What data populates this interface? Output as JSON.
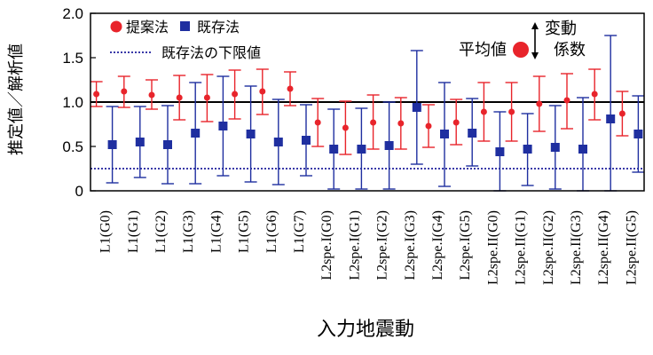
{
  "chart_data": {
    "type": "scatter",
    "xlabel": "入力地震動",
    "ylabel": "推定値／解析値",
    "ylim": [
      0,
      2.0
    ],
    "yticks": [
      "0",
      "0.5",
      "1.0",
      "1.5",
      "2.0"
    ],
    "reference_line": 1.0,
    "categories": [
      "L1(G0)",
      "L1(G1)",
      "L1(G2)",
      "L1(G3)",
      "L1(G4)",
      "L1(G5)",
      "L1(G6)",
      "L1(G7)",
      "L2spe.I(G0)",
      "L2spe.I(G1)",
      "L2spe.I(G2)",
      "L2spe.I(G3)",
      "L2spe.I(G4)",
      "L2spe.I(G5)",
      "L2spe.II(G0)",
      "L2spe.II(G1)",
      "L2spe.II(G2)",
      "L2spe.II(G3)",
      "L2spe.II(G4)",
      "L2spe.II(G5)"
    ],
    "series": [
      {
        "name": "提案法",
        "color": "#e8242b",
        "marker": "circle",
        "mean": [
          1.09,
          1.12,
          1.08,
          1.05,
          1.05,
          1.09,
          1.12,
          1.15,
          0.77,
          0.71,
          0.77,
          0.76,
          0.73,
          0.77,
          0.89,
          0.89,
          0.98,
          1.02,
          1.09,
          0.87
        ],
        "upper": [
          1.23,
          1.29,
          1.25,
          1.3,
          1.31,
          1.36,
          1.37,
          1.34,
          1.04,
          1.01,
          1.08,
          1.05,
          0.97,
          1.03,
          1.22,
          1.22,
          1.29,
          1.32,
          1.37,
          1.12
        ],
        "lower": [
          0.95,
          0.94,
          0.92,
          0.8,
          0.78,
          0.81,
          0.86,
          0.96,
          0.5,
          0.41,
          0.47,
          0.47,
          0.49,
          0.52,
          0.56,
          0.56,
          0.67,
          0.7,
          0.8,
          0.62
        ]
      },
      {
        "name": "既存法",
        "color": "#1f2fa0",
        "marker": "square",
        "mean": [
          0.52,
          0.55,
          0.52,
          0.65,
          0.73,
          0.64,
          0.55,
          0.57,
          0.47,
          0.47,
          0.51,
          0.94,
          0.64,
          0.65,
          0.44,
          0.47,
          0.49,
          0.47,
          0.81,
          0.64
        ],
        "upper": [
          0.95,
          0.95,
          0.96,
          1.22,
          1.29,
          1.18,
          1.03,
          0.97,
          0.92,
          0.93,
          1.0,
          1.58,
          1.22,
          1.04,
          0.89,
          0.87,
          0.96,
          1.05,
          1.75,
          1.07
        ],
        "lower": [
          0.09,
          0.15,
          0.08,
          0.08,
          0.17,
          0.1,
          0.07,
          0.17,
          0.02,
          0.02,
          0.02,
          0.3,
          0.05,
          0.28,
          0.0,
          0.06,
          0.02,
          0.0,
          0.0,
          0.21
        ]
      }
    ],
    "lower_limit": {
      "name": "既存法の下限値",
      "value": 0.25,
      "color": "#3a3aa8",
      "style": "dotted"
    },
    "legend": {
      "placement": "top-left",
      "items": [
        "提案法",
        "既存法",
        "既存法の下限値"
      ]
    },
    "inset_legend": {
      "placement": "top-right",
      "mean_label": "平均値",
      "range_label_top": "変動",
      "range_label_bottom": "係数",
      "marker_color": "#e8242b"
    }
  }
}
